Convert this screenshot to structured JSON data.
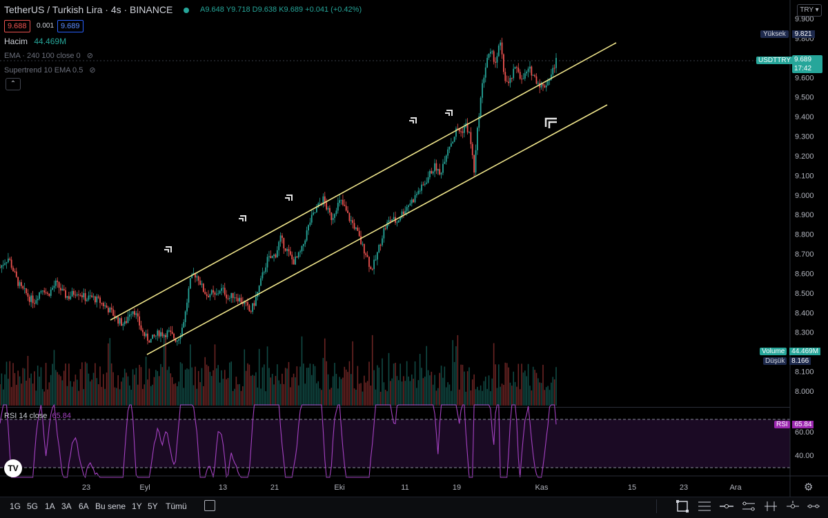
{
  "header": {
    "symbol": "TetherUS / Turkish Lira · 4s · BINANCE",
    "ohlc": {
      "open": "A9.648",
      "high": "Y9.718",
      "low": "D9.638",
      "close": "K9.689",
      "change": "+0.041 (+0.42%)"
    },
    "bid": "9.688",
    "spread": "0.001",
    "ask": "9.689",
    "volume_label": "Hacim",
    "volume_value": "44.469M",
    "ema_label": "EMA · 240 100 close 0",
    "supertrend_label": "Supertrend 10 EMA 0.5",
    "currency_button": "TRY"
  },
  "price_axis": {
    "ticks": [
      "9.900",
      "9.800",
      "9.700",
      "9.600",
      "9.500",
      "9.400",
      "9.300",
      "9.200",
      "9.100",
      "9.000",
      "8.900",
      "8.800",
      "8.700",
      "8.600",
      "8.500",
      "8.400",
      "8.300",
      "8.200",
      "8.100",
      "8.000"
    ],
    "tags": {
      "high_label": "Yüksek",
      "high_value": "9.821",
      "symbol_label": "USDTTRY",
      "symbol_value": "9.689",
      "countdown": "17:42",
      "volume_label": "Volume",
      "volume_value": "44.469M",
      "low_label": "Düşük",
      "low_value": "8.166"
    }
  },
  "rsi": {
    "label": "RSI 14 close",
    "value_label": "65.84",
    "tag_label": "RSI",
    "tag_value": "65.84",
    "ticks": [
      "60.00",
      "40.00"
    ]
  },
  "time_axis": [
    "23",
    "Eyl",
    "13",
    "21",
    "Eki",
    "11",
    "19",
    "Kas",
    "15",
    "23",
    "Ara"
  ],
  "timeframes": [
    "1G",
    "5G",
    "1A",
    "3A",
    "6A",
    "Bu sene",
    "1Y",
    "5Y",
    "Tümü"
  ],
  "colors": {
    "up": "#26a69a",
    "down": "#ef5350",
    "channel": "#f0e68c",
    "rsi": "#9c27b0",
    "rsi_fill": "#1b0a24"
  },
  "chart_data": {
    "type": "candlestick",
    "title": "TetherUS / Turkish Lira · 4s · BINANCE",
    "ylim": [
      7.95,
      9.95
    ],
    "x_ticks": [
      "23",
      "Eyl",
      "13",
      "21",
      "Eki",
      "11",
      "19",
      "Kas",
      "15",
      "23",
      "Ara"
    ],
    "close_path": [
      8.63,
      8.66,
      8.68,
      8.62,
      8.56,
      8.52,
      8.5,
      8.47,
      8.46,
      8.5,
      8.53,
      8.49,
      8.52,
      8.55,
      8.52,
      8.49,
      8.48,
      8.5,
      8.51,
      8.49,
      8.47,
      8.48,
      8.47,
      8.46,
      8.44,
      8.42,
      8.4,
      8.37,
      8.35,
      8.34,
      8.4,
      8.42,
      8.36,
      8.3,
      8.27,
      8.26,
      8.28,
      8.3,
      8.29,
      8.3,
      8.28,
      8.26,
      8.3,
      8.4,
      8.55,
      8.6,
      8.58,
      8.52,
      8.49,
      8.5,
      8.48,
      8.52,
      8.51,
      8.47,
      8.49,
      8.48,
      8.46,
      8.44,
      8.4,
      8.45,
      8.52,
      8.6,
      8.67,
      8.68,
      8.7,
      8.78,
      8.74,
      8.7,
      8.66,
      8.68,
      8.72,
      8.8,
      8.87,
      8.91,
      8.95,
      8.98,
      8.92,
      8.88,
      8.94,
      8.97,
      8.93,
      8.88,
      8.85,
      8.8,
      8.74,
      8.7,
      8.62,
      8.66,
      8.74,
      8.82,
      8.86,
      8.88,
      8.86,
      8.9,
      8.93,
      8.96,
      8.98,
      9.02,
      9.04,
      9.08,
      9.12,
      9.15,
      9.1,
      9.18,
      9.25,
      9.28,
      9.34,
      9.32,
      9.36,
      9.3,
      9.12,
      9.4,
      9.58,
      9.7,
      9.72,
      9.68,
      9.78,
      9.6,
      9.56,
      9.62,
      9.66,
      9.58,
      9.62,
      9.64,
      9.6,
      9.57,
      9.55,
      9.58,
      9.62,
      9.689
    ],
    "channel": {
      "upper": {
        "from": [
          0,
          8.37
        ],
        "to": [
          1,
          9.8
        ]
      },
      "lower": {
        "from": [
          0,
          8.14
        ],
        "to": [
          1,
          9.47
        ]
      }
    },
    "high": 9.821,
    "low": 8.166,
    "last": 9.689,
    "volume_last": "44.469M",
    "rsi_last": 65.84,
    "rsi_levels": [
      70,
      30
    ]
  }
}
